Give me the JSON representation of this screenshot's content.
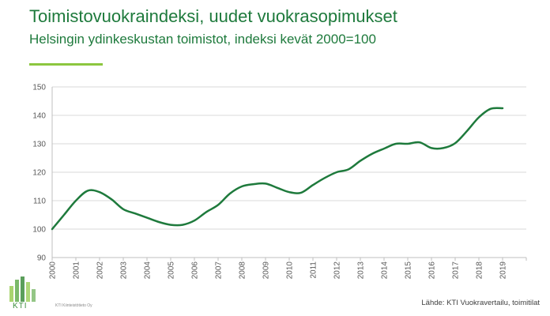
{
  "header": {
    "title": "Toimistovuokraindeksi, uudet vuokrasopimukset",
    "subtitle": "Helsingin ydinkeskustan toimistot, indeksi kevät 2000=100"
  },
  "footer": {
    "logo_text": "KTI",
    "company": "KTI Kiinteistötieto Oy",
    "source": "Lähde: KTI Vuokravertailu, toimitilat"
  },
  "colors": {
    "title": "#1e7a3c",
    "accent": "#8cc63f",
    "line": "#1e7a3c",
    "grid": "#d9d9d9"
  },
  "chart_data": {
    "type": "line",
    "title": "Toimistovuokraindeksi, uudet vuokrasopimukset",
    "subtitle": "Helsingin ydinkeskustan toimistot, indeksi kevät 2000=100",
    "xlabel": "",
    "ylabel": "",
    "categories": [
      "2000",
      "2001",
      "2002",
      "2003",
      "2004",
      "2005",
      "2006",
      "2007",
      "2008",
      "2009",
      "2010",
      "2011",
      "2012",
      "2013",
      "2014",
      "2015",
      "2016",
      "2017",
      "2018",
      "2019"
    ],
    "ylim": [
      90,
      150
    ],
    "yticks": [
      90,
      100,
      110,
      120,
      130,
      140,
      150
    ],
    "grid": true,
    "legend": "none",
    "series": [
      {
        "x": [
          2000.0,
          2000.5,
          2001.0,
          2001.5,
          2002.0,
          2002.5,
          2003.0,
          2003.5,
          2004.0,
          2004.5,
          2005.0,
          2005.5,
          2006.0,
          2006.5,
          2007.0,
          2007.5,
          2008.0,
          2008.5,
          2009.0,
          2009.5,
          2010.0,
          2010.5,
          2011.0,
          2011.5,
          2012.0,
          2012.5,
          2013.0,
          2013.5,
          2014.0,
          2014.5,
          2015.0,
          2015.5,
          2016.0,
          2016.5,
          2017.0,
          2017.5,
          2018.0,
          2018.5,
          2019.0
        ],
        "values": [
          100,
          105,
          110,
          113.5,
          113,
          110.5,
          107,
          105.5,
          104,
          102.5,
          101.5,
          101.5,
          103,
          106,
          108.5,
          112.5,
          115,
          115.8,
          116,
          114.5,
          113,
          112.8,
          115.5,
          118,
          120,
          121,
          124,
          126.5,
          128.3,
          130,
          130,
          130.5,
          128.5,
          128.5,
          130.2,
          134.5,
          139.3,
          142.3,
          142.5
        ]
      }
    ]
  }
}
